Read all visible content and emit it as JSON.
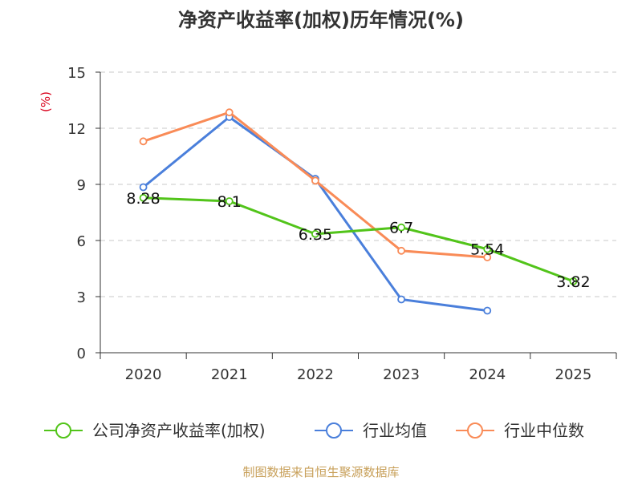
{
  "chart_data": {
    "type": "line",
    "title": "净资产收益率(加权)历年情况(%)",
    "unit_label": "(%)",
    "categories": [
      "2020",
      "2021",
      "2022",
      "2023",
      "2024",
      "2025"
    ],
    "ylim": [
      0,
      15
    ],
    "yticks": [
      "0",
      "3",
      "6",
      "9",
      "12",
      "15"
    ],
    "grid": true,
    "legend_position": "bottom",
    "series": [
      {
        "name": "公司净资产收益率(加权)",
        "color": "#52c41a",
        "values": [
          8.28,
          8.1,
          6.35,
          6.7,
          5.54,
          3.82
        ],
        "labels": [
          "8.28",
          "8.1",
          "6.35",
          "6.7",
          "5.54",
          "3.82"
        ]
      },
      {
        "name": "行业均值",
        "color": "#4a7fdb",
        "values": [
          8.85,
          12.6,
          9.3,
          2.85,
          2.25,
          null
        ]
      },
      {
        "name": "行业中位数",
        "color": "#f98b57",
        "values": [
          11.3,
          12.85,
          9.2,
          5.45,
          5.1,
          null
        ]
      }
    ]
  },
  "source": "制图数据来自恒生聚源数据库"
}
